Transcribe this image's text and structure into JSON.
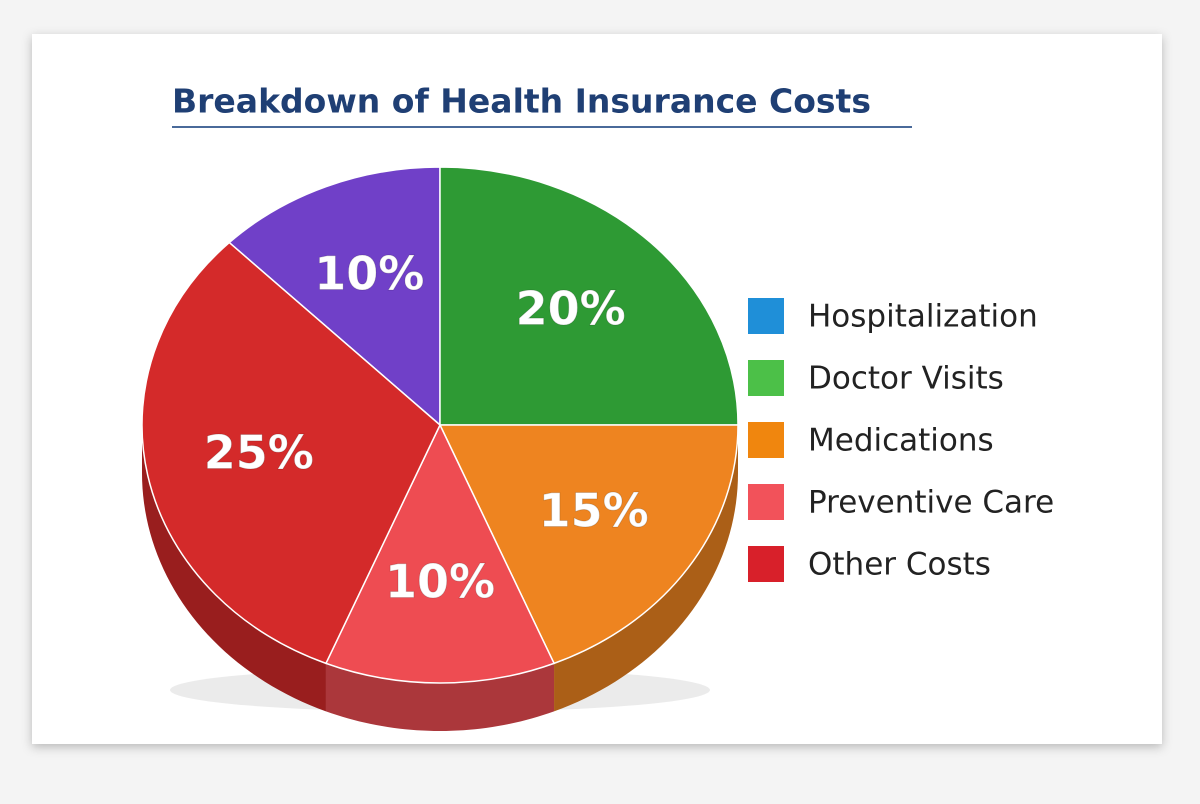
{
  "chart_data": {
    "type": "pie",
    "title": "Breakdown of Health Insurance Costs",
    "categories": [
      "Hospitalization",
      "Doctor Visits",
      "Medications",
      "Preventive Care",
      "Other Costs"
    ],
    "values": [
      10,
      20,
      15,
      10,
      25
    ],
    "value_labels": [
      "10%",
      "20%",
      "15%",
      "10%",
      "25%"
    ],
    "slice_colors": [
      "#7040c8",
      "#2e9a34",
      "#ee8420",
      "#ee4c52",
      "#d42a2a"
    ],
    "legend_colors": [
      "#1f8fd8",
      "#4cc048",
      "#f0860e",
      "#f2525a",
      "#d8202a"
    ],
    "legend": "right"
  }
}
